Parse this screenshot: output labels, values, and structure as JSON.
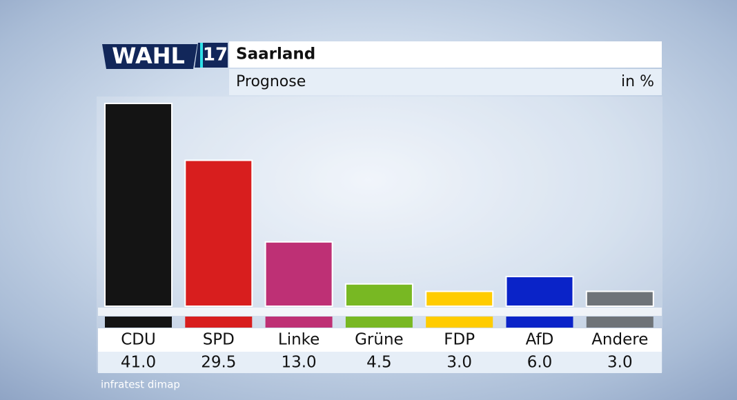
{
  "chart_data": {
    "type": "bar",
    "logo": "WAHL",
    "logo_year": "17",
    "title": "Saarland",
    "subtitle": "Prognose",
    "unit": "in %",
    "source": "infratest dimap",
    "categories": [
      "CDU",
      "SPD",
      "Linke",
      "Grüne",
      "FDP",
      "AfD",
      "Andere"
    ],
    "values": [
      41.0,
      29.5,
      13.0,
      4.5,
      3.0,
      6.0,
      3.0
    ],
    "value_labels": [
      "41.0",
      "29.5",
      "13.0",
      "4.5",
      "3.0",
      "6.0",
      "3.0"
    ],
    "colors": [
      "#141414",
      "#d81e1e",
      "#be3075",
      "#78b823",
      "#ffcc00",
      "#0a23c8",
      "#6e7378"
    ]
  }
}
